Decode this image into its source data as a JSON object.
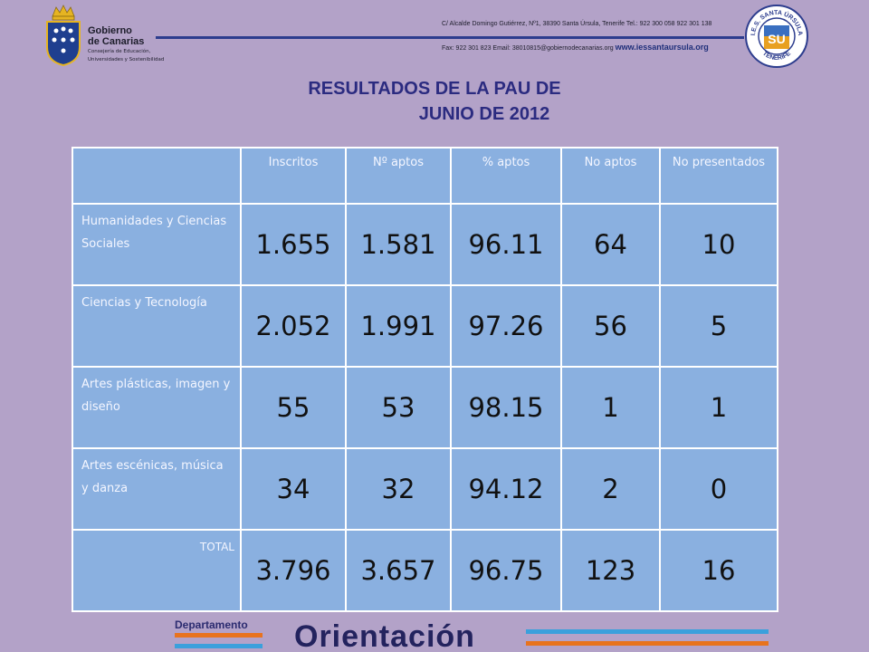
{
  "header": {
    "org_line1": "Gobierno",
    "org_line2": "de Canarias",
    "dept_line1": "Consejería de Educación,",
    "dept_line2": "Universidades y Sostenibilidad",
    "contact_line1": "C/ Alcalde Domingo Gutiérrez, Nº1, 38390 Santa Úrsula, Tenerife Tel.: 922 300 058 922 301 138",
    "contact_line2": "Fax: 922 301 823  Email: 38010815@gobiernodecanarias.org",
    "website": "www.iessantaursula.org",
    "seal_top": "I.E.S. SANTA ÚRSULA",
    "seal_bottom": "TENERIFE",
    "seal_letters": "SU"
  },
  "title": {
    "line1": "RESULTADOS DE LA PAU DE",
    "line2": "JUNIO DE 2012"
  },
  "table": {
    "headers": [
      "",
      "Inscritos",
      "Nº aptos",
      "% aptos",
      "No aptos",
      "No presentados"
    ],
    "rows": [
      {
        "category": "Humanidades y Ciencias Sociales",
        "values": [
          "1.655",
          "1.581",
          "96.11",
          "64",
          "10"
        ]
      },
      {
        "category": "Ciencias y Tecnología",
        "values": [
          "2.052",
          "1.991",
          "97.26",
          "56",
          "5"
        ]
      },
      {
        "category": "Artes plásticas, imagen y diseño",
        "values": [
          "55",
          "53",
          "98.15",
          "1",
          "1"
        ]
      },
      {
        "category": "Artes escénicas, música y danza",
        "values": [
          "34",
          "32",
          "94.12",
          "2",
          "0"
        ]
      },
      {
        "category": "TOTAL",
        "values": [
          "3.796",
          "3.657",
          "96.75",
          "123",
          "16"
        ]
      }
    ]
  },
  "footer": {
    "department": "Departamento",
    "name": "Orientación"
  },
  "colors": {
    "background": "#b3a2c8",
    "cell": "#8ab0e0",
    "title": "#2b2b80",
    "accent_orange": "#e8731e",
    "accent_blue": "#3aa0dc"
  },
  "icons": {
    "government_logo": "coat-of-arms-icon",
    "school_logo": "school-seal-icon"
  }
}
